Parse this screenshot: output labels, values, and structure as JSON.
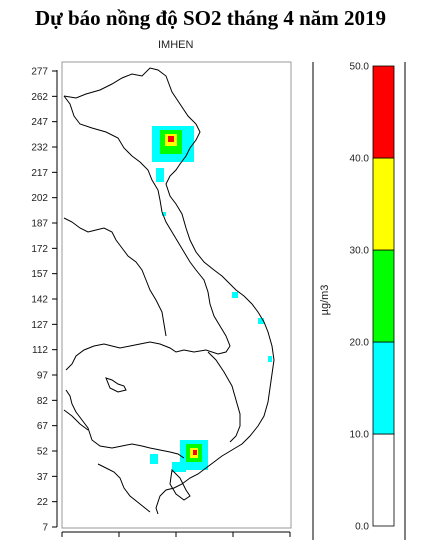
{
  "title": "Dự báo nồng độ SO2 tháng 4 năm 2019",
  "subtitle": "IMHEN",
  "colorbar": {
    "unit": "µg/m3",
    "levels": [
      {
        "from": 0,
        "to": 10,
        "color": "#ffffff"
      },
      {
        "from": 10,
        "to": 20,
        "color": "#00ffff"
      },
      {
        "from": 20,
        "to": 30,
        "color": "#00ff00"
      },
      {
        "from": 30,
        "to": 40,
        "color": "#ffff00"
      },
      {
        "from": 40,
        "to": 50,
        "color": "#ff0000"
      }
    ],
    "tick_labels": [
      "0.0",
      "10.0",
      "20.0",
      "30.0",
      "40.0",
      "50.0"
    ]
  },
  "y_axis_ticks": [
    "7",
    "22",
    "37",
    "52",
    "67",
    "82",
    "97",
    "112",
    "127",
    "142",
    "157",
    "172",
    "187",
    "202",
    "217",
    "232",
    "247",
    "262",
    "277"
  ]
}
